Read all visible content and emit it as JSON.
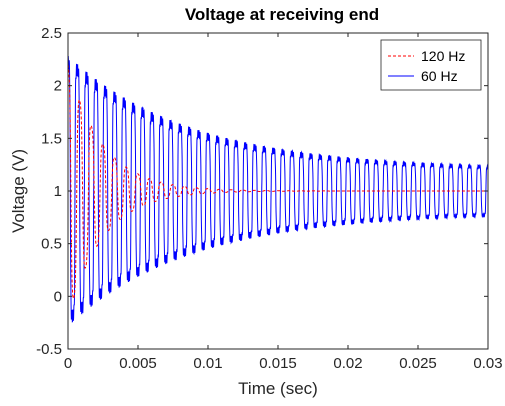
{
  "chart_data": {
    "type": "line",
    "title": "Voltage at receiving end",
    "xlabel": "Time (sec)",
    "ylabel": "Voltage (V)",
    "xlim": [
      0,
      0.03
    ],
    "ylim": [
      -0.5,
      2.5
    ],
    "xticks": [
      0,
      0.005,
      0.01,
      0.015,
      0.02,
      0.025,
      0.03
    ],
    "xtick_labels": [
      "0",
      "0.005",
      "0.01",
      "0.015",
      "0.02",
      "0.025",
      "0.03"
    ],
    "yticks": [
      -0.5,
      0,
      0.5,
      1,
      1.5,
      2,
      2.5
    ],
    "ytick_labels": [
      "-0.5",
      "0",
      "0.5",
      "1",
      "1.5",
      "2",
      "2.5"
    ],
    "grid": false,
    "legend_position": "top-right",
    "series": [
      {
        "name": "120 Hz",
        "color": "#ff0000",
        "style": "dashed",
        "steady_value": 1.0,
        "initial_peak": 2.2,
        "initial_trough": -0.2,
        "oscillation_period": 0.000833,
        "settles_by": 0.011
      },
      {
        "name": "60 Hz",
        "color": "#0000ff",
        "style": "solid",
        "steady_value": 1.0,
        "initial_peak": 2.2,
        "initial_trough": -0.25,
        "final_high": 1.2,
        "final_low": 0.8,
        "oscillation_period": 0.000667
      }
    ]
  }
}
